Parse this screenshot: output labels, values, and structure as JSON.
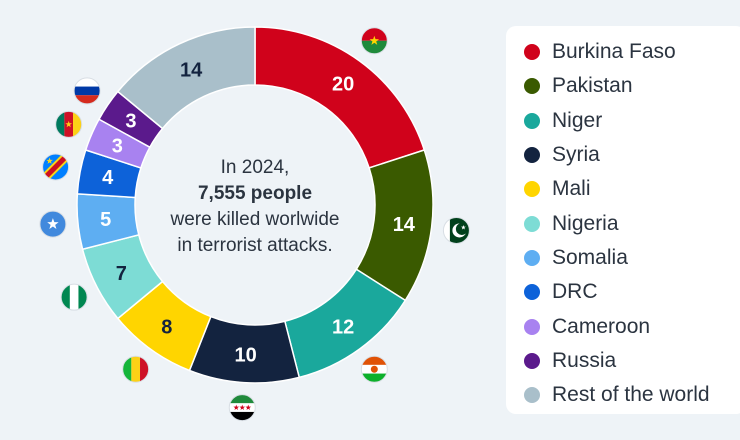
{
  "chart_data": {
    "type": "pie",
    "categories": [
      "Burkina Faso",
      "Pakistan",
      "Niger",
      "Syria",
      "Mali",
      "Nigeria",
      "Somalia",
      "DRC",
      "Cameroon",
      "Russia",
      "Rest of the world"
    ],
    "values": [
      20,
      14,
      12,
      10,
      8,
      7,
      5,
      4,
      3,
      3,
      14
    ],
    "colors": [
      "#d0021b",
      "#3a5a00",
      "#1aa89c",
      "#13233f",
      "#ffd500",
      "#7ddcd5",
      "#5eaef2",
      "#0d62d9",
      "#a882f0",
      "#5b1a8c",
      "#a9bfca"
    ],
    "label_colors": [
      "#ffffff",
      "#ffffff",
      "#ffffff",
      "#ffffff",
      "#13233f",
      "#13233f",
      "#ffffff",
      "#ffffff",
      "#ffffff",
      "#ffffff",
      "#13233f"
    ],
    "flag_icons": [
      "burkina-faso-flag-icon",
      "pakistan-flag-icon",
      "niger-flag-icon",
      "syria-flag-icon",
      "mali-flag-icon",
      "nigeria-flag-icon",
      "somalia-flag-icon",
      "drc-flag-icon",
      "cameroon-flag-icon",
      "russia-flag-icon",
      ""
    ],
    "legend_position": "right"
  },
  "center": {
    "line1": "In 2024,",
    "line2": "7,555 people",
    "line3": "were killed worlwide",
    "line4": "in terrorist attacks."
  }
}
